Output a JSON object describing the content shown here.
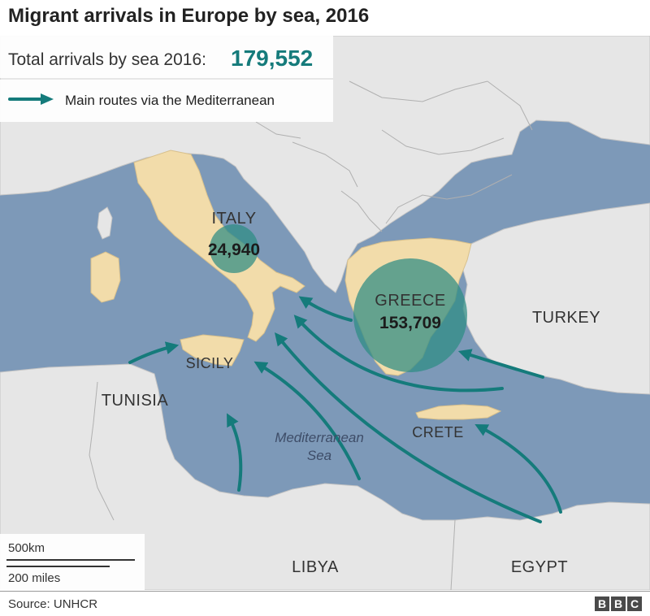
{
  "title": "Migrant arrivals in Europe by sea, 2016",
  "total": {
    "label": "Total arrivals by sea 2016:",
    "value": "179,552"
  },
  "legend": {
    "route_label": "Main routes via the Mediterranean"
  },
  "labels": {
    "italy": "ITALY",
    "greece": "GREECE",
    "turkey": "TURKEY",
    "sicily": "SICILY",
    "tunisia": "TUNISIA",
    "crete": "CRETE",
    "libya": "LIBYA",
    "egypt": "EGYPT",
    "sea_line1": "Mediterranean",
    "sea_line2": "Sea"
  },
  "arrivals": {
    "italy": "24,940",
    "greece": "153,709"
  },
  "scale": {
    "km": "500km",
    "miles": "200 miles"
  },
  "source": "Source: UNHCR",
  "logo": [
    "B",
    "B",
    "C"
  ],
  "colors": {
    "sea": "#7d99b8",
    "land": "#e6e6e6",
    "highlight": "#f2dcaa",
    "route": "#157b7b",
    "bubble": "#2d8c83"
  }
}
